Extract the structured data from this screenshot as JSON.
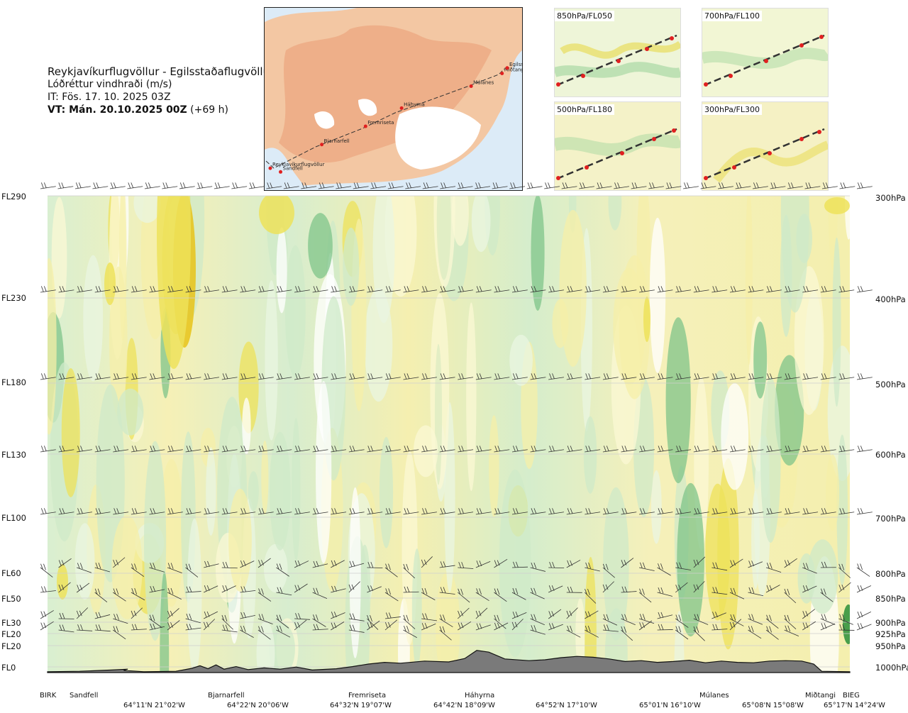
{
  "header": {
    "route": "Reykjavíkurflugvöllur - Egilsstaðaflugvöllur",
    "variable": "Lóðréttur vindhraði (m/s)",
    "issue_time": "IT: Fös. 17. 10. 2025 03Z",
    "valid_time": "VT: Mán. 20.10.2025 00Z",
    "lead_time": "(+69 h)"
  },
  "inset_map": {
    "places": [
      {
        "name": "Reykjavíkurflugvöllur",
        "lx": 0.0,
        "ly": 0.88
      },
      {
        "name": "Sandfell",
        "lx": 0.04,
        "ly": 0.9
      },
      {
        "name": "Bjarnarfell",
        "lx": 0.2,
        "ly": 0.75
      },
      {
        "name": "Fremriseta",
        "lx": 0.37,
        "ly": 0.65
      },
      {
        "name": "Háhyrna",
        "lx": 0.51,
        "ly": 0.55
      },
      {
        "name": "Múlanes",
        "lx": 0.78,
        "ly": 0.43
      },
      {
        "name": "Miðtangi",
        "lx": 0.9,
        "ly": 0.36
      },
      {
        "name": "Egilsst",
        "lx": 0.92,
        "ly": 0.33
      }
    ]
  },
  "level_panels": [
    {
      "label": "850hPa/FL050"
    },
    {
      "label": "700hPa/FL100"
    },
    {
      "label": "500hPa/FL180"
    },
    {
      "label": "300hPa/FL300"
    }
  ],
  "chart_data": {
    "type": "heatmap",
    "title": "Lóðréttur vindhraði (m/s)",
    "y_levels_left": [
      {
        "label": "FL290",
        "hpa": 300
      },
      {
        "label": "FL230",
        "hpa": 400
      },
      {
        "label": "FL180",
        "hpa": 500
      },
      {
        "label": "FL130",
        "hpa": 600
      },
      {
        "label": "FL100",
        "hpa": 700
      },
      {
        "label": "FL60",
        "hpa": 800
      },
      {
        "label": "FL50",
        "hpa": 850
      },
      {
        "label": "FL30",
        "hpa": 900
      },
      {
        "label": "FL20",
        "hpa": 925
      },
      {
        "label": "FL20",
        "hpa": 950
      },
      {
        "label": "FL0",
        "hpa": 1000
      }
    ],
    "y_levels_right": [
      "300hPa",
      "400hPa",
      "500hPa",
      "600hPa",
      "700hPa",
      "800hPa",
      "850hPa",
      "900hPa",
      "925hPa",
      "950hPa",
      "1000hPa"
    ],
    "x_range": [
      0,
      1
    ],
    "locations": [
      {
        "name": "BIRK",
        "x": 0.0
      },
      {
        "name": "Sandfell",
        "x": 0.042
      },
      {
        "name": "Bjarnarfell",
        "x": 0.225
      },
      {
        "name": "Fremriseta",
        "x": 0.395
      },
      {
        "name": "Háhyrna",
        "x": 0.535
      },
      {
        "name": "Múlanes",
        "x": 0.832
      },
      {
        "name": "Miðtangi",
        "x": 0.968
      },
      {
        "name": "BIEG",
        "x": 1.0
      }
    ],
    "coordinates": [
      {
        "label": "64°11'N 21°02'W",
        "x": 0.129
      },
      {
        "label": "64°22'N 20°06'W",
        "x": 0.257
      },
      {
        "label": "64°32'N 19°07'W",
        "x": 0.39
      },
      {
        "label": "64°42'N 18°09'W",
        "x": 0.522
      },
      {
        "label": "64°52'N 17°10'W",
        "x": 0.655
      },
      {
        "label": "65°01'N 16°10'W",
        "x": 0.787
      },
      {
        "label": "65°08'N 15°08'W",
        "x": 0.916
      },
      {
        "label": "65°17'N 14°24'W",
        "x": 1.0
      }
    ],
    "terrain_profile": [
      [
        0.0,
        0.02
      ],
      [
        0.04,
        0.03
      ],
      [
        0.08,
        0.06
      ],
      [
        0.1,
        0.08
      ],
      [
        0.095,
        0.05
      ],
      [
        0.12,
        0.02
      ],
      [
        0.16,
        0.03
      ],
      [
        0.18,
        0.1
      ],
      [
        0.19,
        0.16
      ],
      [
        0.2,
        0.09
      ],
      [
        0.21,
        0.18
      ],
      [
        0.22,
        0.08
      ],
      [
        0.235,
        0.14
      ],
      [
        0.25,
        0.07
      ],
      [
        0.27,
        0.11
      ],
      [
        0.29,
        0.08
      ],
      [
        0.31,
        0.13
      ],
      [
        0.33,
        0.06
      ],
      [
        0.36,
        0.09
      ],
      [
        0.38,
        0.14
      ],
      [
        0.4,
        0.2
      ],
      [
        0.42,
        0.24
      ],
      [
        0.44,
        0.22
      ],
      [
        0.47,
        0.27
      ],
      [
        0.5,
        0.25
      ],
      [
        0.52,
        0.33
      ],
      [
        0.535,
        0.52
      ],
      [
        0.55,
        0.48
      ],
      [
        0.57,
        0.32
      ],
      [
        0.6,
        0.28
      ],
      [
        0.62,
        0.3
      ],
      [
        0.64,
        0.35
      ],
      [
        0.66,
        0.38
      ],
      [
        0.68,
        0.36
      ],
      [
        0.7,
        0.32
      ],
      [
        0.72,
        0.26
      ],
      [
        0.74,
        0.28
      ],
      [
        0.76,
        0.24
      ],
      [
        0.78,
        0.26
      ],
      [
        0.8,
        0.29
      ],
      [
        0.82,
        0.23
      ],
      [
        0.84,
        0.27
      ],
      [
        0.86,
        0.24
      ],
      [
        0.88,
        0.23
      ],
      [
        0.9,
        0.27
      ],
      [
        0.92,
        0.28
      ],
      [
        0.94,
        0.27
      ],
      [
        0.955,
        0.2
      ],
      [
        0.965,
        0.03
      ],
      [
        1.0,
        0.02
      ]
    ],
    "colorscale": [
      "#2a8f3a",
      "#7fc48a",
      "#cfe9c8",
      "#eaf6e2",
      "#ffffff",
      "#fbf8d4",
      "#f6efa8",
      "#ede25a",
      "#e8c318"
    ],
    "grid": false
  }
}
